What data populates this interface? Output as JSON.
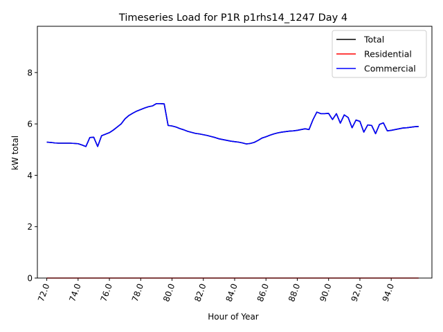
{
  "chart_data": {
    "type": "line",
    "title": "Timeseries Load for P1R p1rhs14_1247  Day 4",
    "xlabel": "Hour of Year",
    "ylabel": "kW total",
    "xlim": [
      71.4,
      96.6
    ],
    "ylim": [
      0,
      9.8
    ],
    "xticks": [
      72,
      74,
      76,
      78,
      80,
      82,
      84,
      86,
      88,
      90,
      92,
      94
    ],
    "xtick_labels": [
      "72.0",
      "74.0",
      "76.0",
      "78.0",
      "80.0",
      "82.0",
      "84.0",
      "86.0",
      "88.0",
      "90.0",
      "92.0",
      "94.0"
    ],
    "yticks": [
      0,
      2,
      4,
      6,
      8
    ],
    "ytick_labels": [
      "0",
      "2",
      "4",
      "6",
      "8"
    ],
    "grid": false,
    "legend_position": "top-right",
    "x": [
      72.0,
      72.25,
      72.5,
      72.75,
      73.0,
      73.25,
      73.5,
      73.75,
      74.0,
      74.25,
      74.5,
      74.75,
      75.0,
      75.25,
      75.5,
      75.75,
      76.0,
      76.25,
      76.5,
      76.75,
      77.0,
      77.25,
      77.5,
      77.75,
      78.0,
      78.25,
      78.5,
      78.75,
      79.0,
      79.25,
      79.5,
      79.75,
      80.0,
      80.25,
      80.5,
      80.75,
      81.0,
      81.25,
      81.5,
      81.75,
      82.0,
      82.25,
      82.5,
      82.75,
      83.0,
      83.25,
      83.5,
      83.75,
      84.0,
      84.25,
      84.5,
      84.75,
      85.0,
      85.25,
      85.5,
      85.75,
      86.0,
      86.25,
      86.5,
      86.75,
      87.0,
      87.25,
      87.5,
      87.75,
      88.0,
      88.25,
      88.5,
      88.75,
      89.0,
      89.25,
      89.5,
      89.75,
      90.0,
      90.25,
      90.5,
      90.75,
      91.0,
      91.25,
      91.5,
      91.75,
      92.0,
      92.25,
      92.5,
      92.75,
      93.0,
      93.25,
      93.5,
      93.75,
      94.0,
      94.25,
      94.5,
      94.75,
      95.0,
      95.25,
      95.5,
      95.75
    ],
    "series": [
      {
        "name": "Total",
        "color": "#000000",
        "values": [
          5.29,
          5.28,
          5.26,
          5.25,
          5.25,
          5.25,
          5.25,
          5.24,
          5.23,
          5.18,
          5.12,
          5.47,
          5.48,
          5.12,
          5.54,
          5.6,
          5.66,
          5.76,
          5.88,
          6.0,
          6.2,
          6.33,
          6.42,
          6.5,
          6.56,
          6.62,
          6.67,
          6.7,
          6.79,
          6.79,
          6.78,
          5.94,
          5.92,
          5.88,
          5.82,
          5.77,
          5.71,
          5.67,
          5.63,
          5.61,
          5.58,
          5.55,
          5.51,
          5.47,
          5.42,
          5.39,
          5.36,
          5.33,
          5.31,
          5.29,
          5.26,
          5.22,
          5.24,
          5.28,
          5.36,
          5.45,
          5.5,
          5.56,
          5.61,
          5.65,
          5.68,
          5.7,
          5.72,
          5.73,
          5.75,
          5.78,
          5.81,
          5.78,
          6.16,
          6.46,
          6.4,
          6.4,
          6.41,
          6.17,
          6.4,
          6.03,
          6.35,
          6.25,
          5.85,
          6.15,
          6.1,
          5.68,
          5.96,
          5.94,
          5.62,
          5.98,
          6.04,
          5.73,
          5.75,
          5.78,
          5.81,
          5.84,
          5.85,
          5.87,
          5.89,
          5.9
        ]
      },
      {
        "name": "Residential",
        "color": "#ff0000",
        "values": [
          0,
          0,
          0,
          0,
          0,
          0,
          0,
          0,
          0,
          0,
          0,
          0,
          0,
          0,
          0,
          0,
          0,
          0,
          0,
          0,
          0,
          0,
          0,
          0,
          0,
          0,
          0,
          0,
          0,
          0,
          0,
          0,
          0,
          0,
          0,
          0,
          0,
          0,
          0,
          0,
          0,
          0,
          0,
          0,
          0,
          0,
          0,
          0,
          0,
          0,
          0,
          0,
          0,
          0,
          0,
          0,
          0,
          0,
          0,
          0,
          0,
          0,
          0,
          0,
          0,
          0,
          0,
          0,
          0,
          0,
          0,
          0,
          0,
          0,
          0,
          0,
          0,
          0,
          0,
          0,
          0,
          0,
          0,
          0,
          0,
          0,
          0,
          0,
          0,
          0,
          0,
          0,
          0,
          0,
          0,
          0
        ]
      },
      {
        "name": "Commercial",
        "color": "#0000ff",
        "values": [
          5.29,
          5.28,
          5.26,
          5.25,
          5.25,
          5.25,
          5.25,
          5.24,
          5.23,
          5.18,
          5.12,
          5.47,
          5.48,
          5.12,
          5.54,
          5.6,
          5.66,
          5.76,
          5.88,
          6.0,
          6.2,
          6.33,
          6.42,
          6.5,
          6.56,
          6.62,
          6.67,
          6.7,
          6.79,
          6.79,
          6.78,
          5.94,
          5.92,
          5.88,
          5.82,
          5.77,
          5.71,
          5.67,
          5.63,
          5.61,
          5.58,
          5.55,
          5.51,
          5.47,
          5.42,
          5.39,
          5.36,
          5.33,
          5.31,
          5.29,
          5.26,
          5.22,
          5.24,
          5.28,
          5.36,
          5.45,
          5.5,
          5.56,
          5.61,
          5.65,
          5.68,
          5.7,
          5.72,
          5.73,
          5.75,
          5.78,
          5.81,
          5.78,
          6.16,
          6.46,
          6.4,
          6.4,
          6.41,
          6.17,
          6.4,
          6.03,
          6.35,
          6.25,
          5.85,
          6.15,
          6.1,
          5.68,
          5.96,
          5.94,
          5.62,
          5.98,
          6.04,
          5.73,
          5.75,
          5.78,
          5.81,
          5.84,
          5.85,
          5.87,
          5.89,
          5.9
        ]
      }
    ]
  }
}
